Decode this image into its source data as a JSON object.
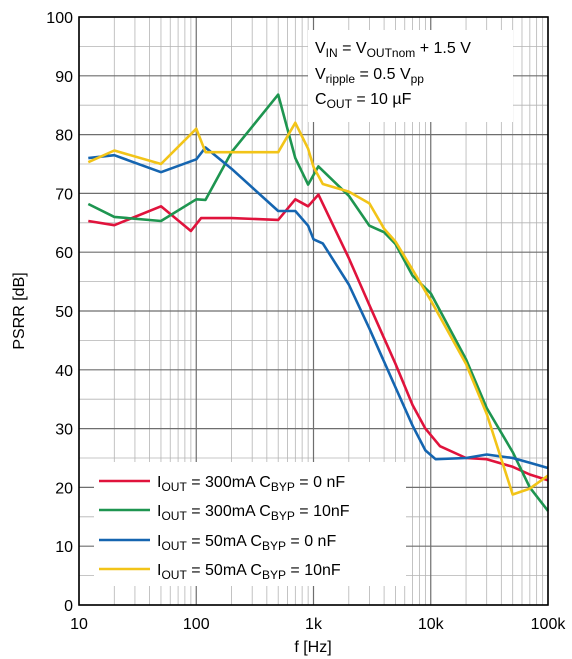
{
  "chart_data": {
    "type": "line",
    "xlabel": "f [Hz]",
    "ylabel": "PSRR [dB]",
    "xscale": "log",
    "xlim": [
      10,
      100000
    ],
    "ylim": [
      0,
      100
    ],
    "grid": true,
    "legend_position": "bottom-left",
    "x_ticks": [
      {
        "value": 10,
        "label": "10"
      },
      {
        "value": 100,
        "label": "100"
      },
      {
        "value": 1000,
        "label": "1k"
      },
      {
        "value": 10000,
        "label": "10k"
      },
      {
        "value": 100000,
        "label": "100k"
      }
    ],
    "y_ticks": [
      {
        "value": 0,
        "label": "0"
      },
      {
        "value": 10,
        "label": "10"
      },
      {
        "value": 20,
        "label": "20"
      },
      {
        "value": 30,
        "label": "30"
      },
      {
        "value": 40,
        "label": "40"
      },
      {
        "value": 50,
        "label": "50"
      },
      {
        "value": 60,
        "label": "60"
      },
      {
        "value": 70,
        "label": "70"
      },
      {
        "value": 80,
        "label": "80"
      },
      {
        "value": 90,
        "label": "90"
      },
      {
        "value": 100,
        "label": "100"
      }
    ],
    "annotation": {
      "line1": {
        "a": "V",
        "a_sub": "IN",
        "b": " = V",
        "b_sub": "OUTnom",
        "c": " + 1.5 V"
      },
      "line2": {
        "a": "V",
        "a_sub": "ripple",
        "b": " = 0.5 V",
        "b_sub": "pp"
      },
      "line3": {
        "a": "C",
        "a_sub": "OUT",
        "b": " = 10 µF"
      }
    },
    "series": [
      {
        "legend": {
          "p1": "I",
          "s1": "OUT",
          "p2": " = 300mA C",
          "s2": "BYP",
          "p3": " = 0 nF"
        },
        "color": "#e0133c",
        "x": [
          12,
          20,
          50,
          90,
          110,
          200,
          500,
          700,
          900,
          1100,
          2000,
          3000,
          5000,
          7000,
          9000,
          12000,
          20000,
          30000,
          50000,
          70000,
          100000
        ],
        "y": [
          65.3,
          64.6,
          67.8,
          63.6,
          65.8,
          65.8,
          65.5,
          69,
          67.8,
          69.8,
          59,
          51,
          41,
          34,
          30,
          27,
          25,
          24.8,
          23.5,
          22.2,
          21.2
        ]
      },
      {
        "legend": {
          "p1": "I",
          "s1": "OUT",
          "p2": " = 300mA C",
          "s2": "BYP",
          "p3": " = 10nF"
        },
        "color": "#1e9550",
        "x": [
          12,
          20,
          50,
          100,
          120,
          200,
          500,
          700,
          900,
          1100,
          2000,
          3000,
          4000,
          5000,
          7000,
          10000,
          20000,
          30000,
          50000,
          70000,
          100000
        ],
        "y": [
          68.2,
          66,
          65.3,
          69,
          68.9,
          77,
          86.8,
          76,
          71.5,
          74.6,
          69.6,
          64.5,
          63.4,
          61.4,
          56,
          53,
          41.8,
          33.5,
          26,
          20,
          16
        ]
      },
      {
        "legend": {
          "p1": "I",
          "s1": "OUT",
          "p2": " = 50mA C",
          "s2": "BYP",
          "p3": " = 0 nF"
        },
        "color": "#1565b0",
        "x": [
          12,
          20,
          50,
          100,
          120,
          200,
          500,
          700,
          900,
          1000,
          1200,
          2000,
          3000,
          5000,
          7000,
          9000,
          11000,
          20000,
          30000,
          50000,
          70000,
          100000
        ],
        "y": [
          76,
          76.5,
          73.6,
          75.8,
          77.8,
          74.2,
          67,
          67,
          64.5,
          62.2,
          61.5,
          54.5,
          47,
          37,
          30.5,
          26.3,
          24.8,
          25,
          25.6,
          25,
          24.2,
          23.3
        ]
      },
      {
        "legend": {
          "p1": "I",
          "s1": "OUT",
          "p2": " = 50mA C",
          "s2": "BYP",
          "p3": " = 10nF"
        },
        "color": "#f2c418",
        "x": [
          12,
          20,
          50,
          100,
          120,
          200,
          500,
          700,
          900,
          1000,
          1200,
          2000,
          3000,
          4000,
          5000,
          7000,
          10000,
          20000,
          30000,
          50000,
          70000,
          100000
        ],
        "y": [
          75.3,
          77.3,
          75,
          81,
          77,
          77,
          77,
          82,
          77.6,
          74.5,
          71.6,
          70.3,
          68.3,
          64,
          61.8,
          57,
          51.8,
          41,
          32.5,
          18.8,
          19.8,
          22
        ]
      }
    ]
  }
}
